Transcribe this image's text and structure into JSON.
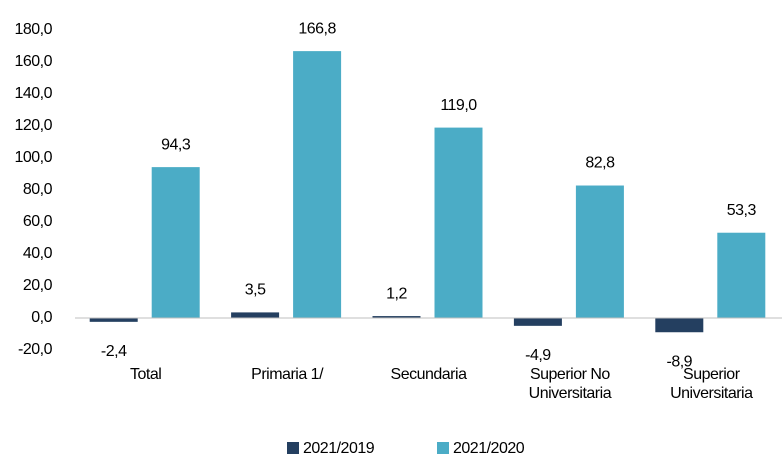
{
  "chart_data": {
    "type": "bar",
    "categories": [
      "Total",
      "Primaria 1/",
      "Secundaria",
      "Superior No Universitaria",
      "Superior Universitaria"
    ],
    "series": [
      {
        "name": "2021/2019",
        "color": "#243f60",
        "values": [
          -2.4,
          3.5,
          1.2,
          -4.9,
          -8.9
        ],
        "value_labels": [
          "-2,4",
          "3,5",
          "1,2",
          "-4,9",
          "-8,9"
        ]
      },
      {
        "name": "2021/2020",
        "color": "#4bacc6",
        "values": [
          94.3,
          166.8,
          119.0,
          82.8,
          53.3
        ],
        "value_labels": [
          "94,3",
          "166,8",
          "119,0",
          "82,8",
          "53,3"
        ]
      }
    ],
    "ylim": [
      -20,
      180
    ],
    "yticks": [
      {
        "value": -20,
        "label": "-20,0"
      },
      {
        "value": 0,
        "label": "0,0"
      },
      {
        "value": 20,
        "label": "20,0"
      },
      {
        "value": 40,
        "label": "40,0"
      },
      {
        "value": 60,
        "label": "60,0"
      },
      {
        "value": 80,
        "label": "80,0"
      },
      {
        "value": 100,
        "label": "100,0"
      },
      {
        "value": 120,
        "label": "120,0"
      },
      {
        "value": 140,
        "label": "140,0"
      },
      {
        "value": 160,
        "label": "160,0"
      },
      {
        "value": 180,
        "label": "180,0"
      }
    ],
    "legend": "bottom"
  }
}
